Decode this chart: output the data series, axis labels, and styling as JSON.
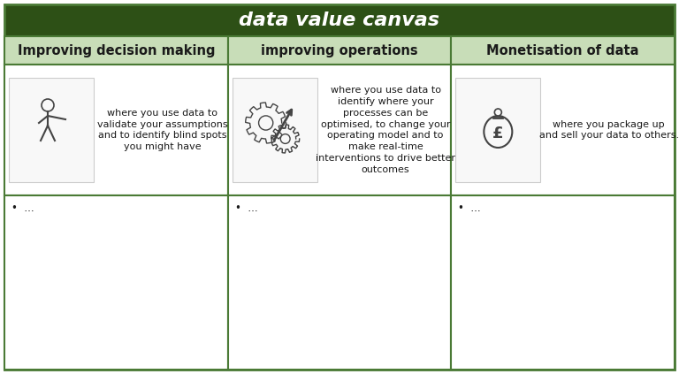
{
  "title": "data value canvas",
  "title_bg": "#2d5016",
  "title_color": "#ffffff",
  "title_fontsize": 16,
  "header_bg": "#c8ddb8",
  "header_border": "#4a7a35",
  "cell_bg": "#ffffff",
  "outer_border": "#4a7a35",
  "columns": [
    {
      "header": "Improving decision making",
      "description": "where you use data to\nvalidate your assumptions\nand to identify blind spots\nyou might have",
      "bullet": "..."
    },
    {
      "header": "improving operations",
      "description": "where you use data to\nidentify where your\nprocesses can be\noptimised, to change your\noperating model and to\nmake real-time\ninterventions to drive better\noutcomes",
      "bullet": "..."
    },
    {
      "header": "Monetisation of data",
      "description": "where you package up\nand sell your data to others.",
      "bullet": "..."
    }
  ],
  "description_fontsize": 8.0,
  "header_fontsize": 10.5,
  "bullet_fontsize": 8.5
}
